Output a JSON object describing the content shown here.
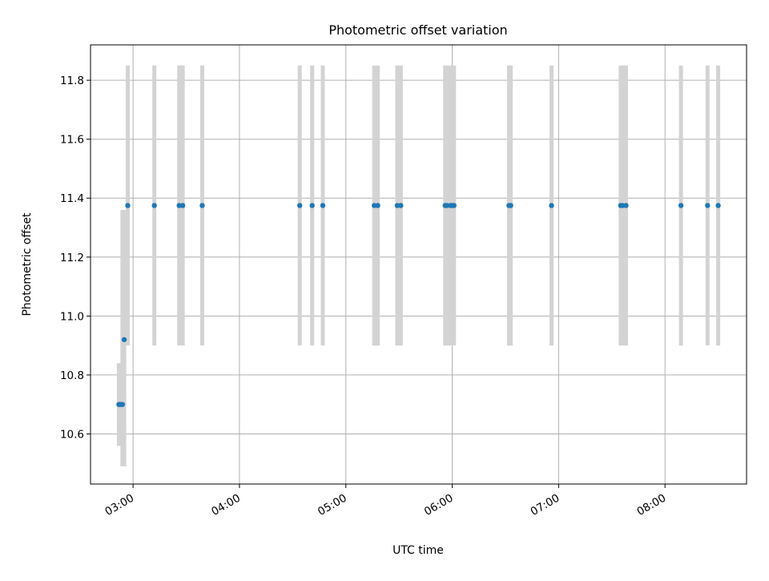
{
  "chart_data": {
    "type": "scatter",
    "title": "Photometric offset variation",
    "xlabel": "UTC time",
    "ylabel": "Photometric offset",
    "x_ticks": [
      "03:00",
      "04:00",
      "05:00",
      "06:00",
      "07:00",
      "08:00"
    ],
    "y_ticks": [
      "10.6",
      "10.8",
      "11.0",
      "11.2",
      "11.4",
      "11.6",
      "11.8"
    ],
    "xlim": [
      "02:36",
      "08:46"
    ],
    "ylim": [
      10.43,
      11.92
    ],
    "grid": true,
    "marker_color": "#1f77b4",
    "errorbar_color": "#d3d3d3",
    "points": [
      {
        "t": "02:52",
        "y": 10.7,
        "lo": 10.56,
        "hi": 10.84
      },
      {
        "t": "02:53",
        "y": 10.7,
        "lo": 10.56,
        "hi": 10.84
      },
      {
        "t": "02:54",
        "y": 10.7,
        "lo": 10.49,
        "hi": 11.36
      },
      {
        "t": "02:55",
        "y": 10.92,
        "lo": 10.49,
        "hi": 11.36
      },
      {
        "t": "02:57",
        "y": 11.375,
        "lo": 10.9,
        "hi": 11.85
      },
      {
        "t": "03:12",
        "y": 11.375,
        "lo": 10.9,
        "hi": 11.85
      },
      {
        "t": "03:26",
        "y": 11.375,
        "lo": 10.9,
        "hi": 11.85
      },
      {
        "t": "03:28",
        "y": 11.375,
        "lo": 10.9,
        "hi": 11.85
      },
      {
        "t": "03:39",
        "y": 11.375,
        "lo": 10.9,
        "hi": 11.85
      },
      {
        "t": "04:34",
        "y": 11.375,
        "lo": 10.9,
        "hi": 11.85
      },
      {
        "t": "04:41",
        "y": 11.375,
        "lo": 10.9,
        "hi": 11.85
      },
      {
        "t": "04:47",
        "y": 11.375,
        "lo": 10.9,
        "hi": 11.85
      },
      {
        "t": "05:16",
        "y": 11.375,
        "lo": 10.9,
        "hi": 11.85
      },
      {
        "t": "05:18",
        "y": 11.375,
        "lo": 10.9,
        "hi": 11.85
      },
      {
        "t": "05:29",
        "y": 11.375,
        "lo": 10.9,
        "hi": 11.85
      },
      {
        "t": "05:31",
        "y": 11.375,
        "lo": 10.9,
        "hi": 11.85
      },
      {
        "t": "05:56",
        "y": 11.375,
        "lo": 10.9,
        "hi": 11.85
      },
      {
        "t": "05:57",
        "y": 11.375,
        "lo": 10.9,
        "hi": 11.85
      },
      {
        "t": "05:59",
        "y": 11.375,
        "lo": 10.9,
        "hi": 11.85
      },
      {
        "t": "06:00",
        "y": 11.375,
        "lo": 10.9,
        "hi": 11.85
      },
      {
        "t": "06:01",
        "y": 11.375,
        "lo": 10.9,
        "hi": 11.85
      },
      {
        "t": "06:32",
        "y": 11.375,
        "lo": 10.9,
        "hi": 11.85
      },
      {
        "t": "06:33",
        "y": 11.375,
        "lo": 10.9,
        "hi": 11.85
      },
      {
        "t": "06:56",
        "y": 11.375,
        "lo": 10.9,
        "hi": 11.85
      },
      {
        "t": "07:35",
        "y": 11.375,
        "lo": 10.9,
        "hi": 11.85
      },
      {
        "t": "07:36",
        "y": 11.375,
        "lo": 10.9,
        "hi": 11.85
      },
      {
        "t": "07:38",
        "y": 11.375,
        "lo": 10.9,
        "hi": 11.85
      },
      {
        "t": "08:09",
        "y": 11.375,
        "lo": 10.9,
        "hi": 11.85
      },
      {
        "t": "08:24",
        "y": 11.375,
        "lo": 10.9,
        "hi": 11.85
      },
      {
        "t": "08:30",
        "y": 11.375,
        "lo": 10.9,
        "hi": 11.85
      }
    ]
  }
}
